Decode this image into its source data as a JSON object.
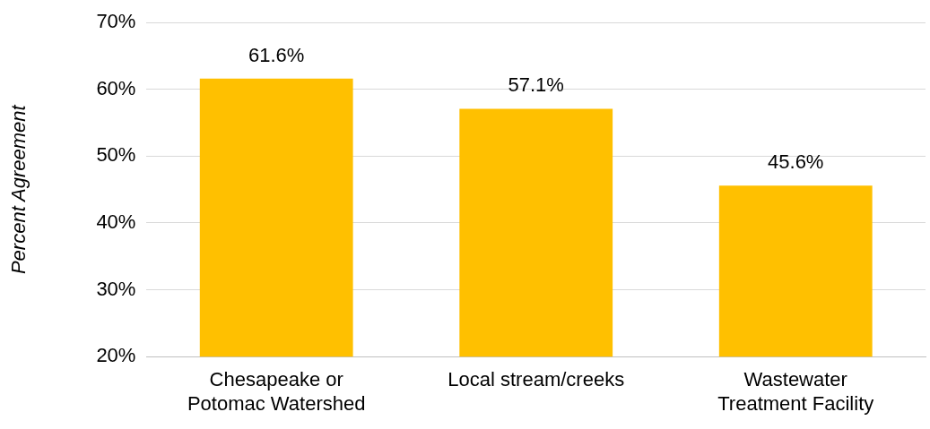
{
  "chart_data": {
    "type": "bar",
    "ylabel": "Percent Agreement",
    "categories": [
      "Chesapeake or Potomac Watershed",
      "Local stream/creeks",
      "Wastewater Treatment Facility"
    ],
    "values": [
      61.6,
      57.1,
      45.6
    ],
    "value_labels": [
      "61.6%",
      "57.1%",
      "45.6%"
    ],
    "color": "#ffc000",
    "ylim": [
      20,
      70
    ],
    "yticks": [
      {
        "value": 20,
        "label": "20%"
      },
      {
        "value": 30,
        "label": "30%"
      },
      {
        "value": 40,
        "label": "40%"
      },
      {
        "value": 50,
        "label": "50%"
      },
      {
        "value": 60,
        "label": "60%"
      },
      {
        "value": 70,
        "label": "70%"
      }
    ],
    "grid": "y",
    "legend": false
  }
}
